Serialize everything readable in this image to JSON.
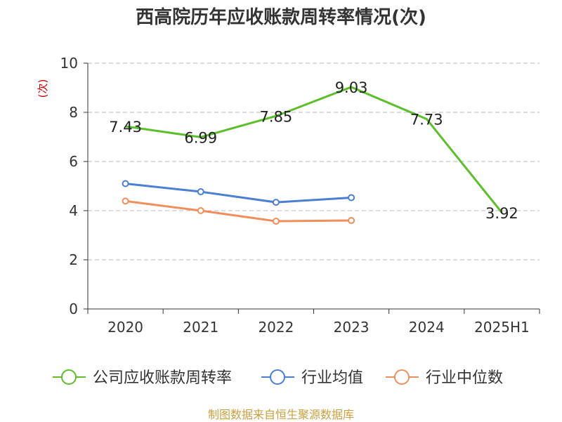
{
  "chart_data": {
    "type": "line",
    "title": "西高院历年应收账款周转率情况(次)",
    "ylabel": "(次)",
    "ylim": [
      0,
      10
    ],
    "yticks": [
      0,
      2,
      4,
      6,
      8,
      10
    ],
    "categories": [
      "2020",
      "2021",
      "2022",
      "2023",
      "2024",
      "2025H1"
    ],
    "grid": true,
    "legend_position": "bottom",
    "series": [
      {
        "name": "公司应收账款周转率",
        "color": "#5cbf2a",
        "values": [
          7.43,
          6.99,
          7.85,
          9.03,
          7.73,
          3.92
        ],
        "labels": [
          "7.43",
          "6.99",
          "7.85",
          "9.03",
          "7.73",
          "3.92"
        ]
      },
      {
        "name": "行业均值",
        "color": "#4a7fd4",
        "values": [
          5.1,
          4.77,
          4.34,
          4.53,
          null,
          null
        ]
      },
      {
        "name": "行业中位数",
        "color": "#f28e5b",
        "values": [
          4.39,
          4.0,
          3.57,
          3.6,
          null,
          null
        ]
      }
    ]
  },
  "source": "制图数据来自恒生聚源数据库"
}
